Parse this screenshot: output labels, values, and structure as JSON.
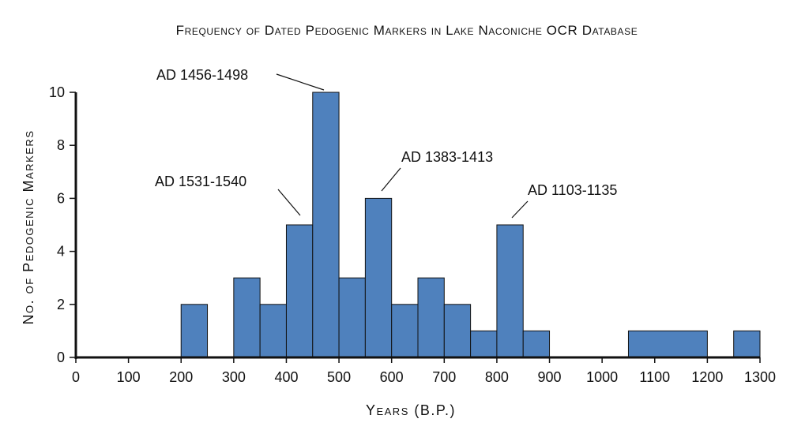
{
  "chart_data": {
    "type": "bar",
    "title": "Frequency of Dated Pedogenic Markers in Lake Naconiche OCR Database",
    "xlabel": "Years (B.P.)",
    "ylabel": "No. of Pedogenic Markers",
    "xlim": [
      0,
      1300
    ],
    "ylim": [
      0,
      10
    ],
    "x_ticks": [
      "0",
      "100",
      "200",
      "300",
      "400",
      "500",
      "600",
      "700",
      "800",
      "900",
      "1000",
      "1100",
      "1200",
      "1300"
    ],
    "y_ticks": [
      "0",
      "2",
      "4",
      "6",
      "8",
      "10"
    ],
    "bin_width": 50,
    "bars": [
      {
        "x0": 200,
        "x1": 250,
        "value": 2
      },
      {
        "x0": 300,
        "x1": 350,
        "value": 3
      },
      {
        "x0": 350,
        "x1": 400,
        "value": 2
      },
      {
        "x0": 400,
        "x1": 450,
        "value": 5
      },
      {
        "x0": 450,
        "x1": 500,
        "value": 10
      },
      {
        "x0": 500,
        "x1": 550,
        "value": 3
      },
      {
        "x0": 550,
        "x1": 600,
        "value": 6
      },
      {
        "x0": 600,
        "x1": 650,
        "value": 2
      },
      {
        "x0": 650,
        "x1": 700,
        "value": 3
      },
      {
        "x0": 700,
        "x1": 750,
        "value": 2
      },
      {
        "x0": 750,
        "x1": 800,
        "value": 1
      },
      {
        "x0": 800,
        "x1": 850,
        "value": 5
      },
      {
        "x0": 850,
        "x1": 900,
        "value": 1
      },
      {
        "x0": 1050,
        "x1": 1200,
        "value": 1
      },
      {
        "x0": 1250,
        "x1": 1300,
        "value": 1
      }
    ],
    "annotations": [
      {
        "text": "AD 1456-1498",
        "x": 475,
        "y": 10
      },
      {
        "text": "AD 1531-1540",
        "x": 425,
        "y": 5
      },
      {
        "text": "AD 1383-1413",
        "x": 575,
        "y": 6
      },
      {
        "text": "AD 1103-1135",
        "x": 825,
        "y": 5
      }
    ],
    "grid": false,
    "bar_color": "#4f81bd"
  }
}
